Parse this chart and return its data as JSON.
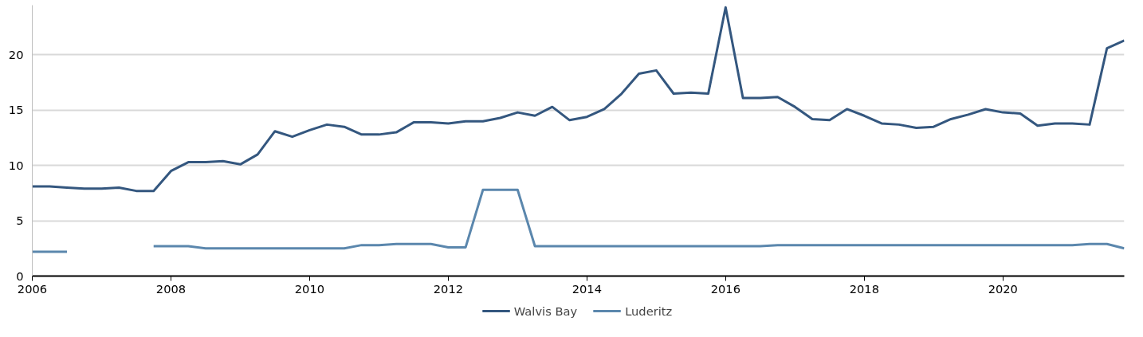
{
  "chart_data": {
    "type": "line",
    "x": [
      2006,
      2006.25,
      2006.5,
      2006.75,
      2007,
      2007.25,
      2007.5,
      2007.75,
      2008,
      2008.25,
      2008.5,
      2008.75,
      2009,
      2009.25,
      2009.5,
      2009.75,
      2010,
      2010.25,
      2010.5,
      2010.75,
      2011,
      2011.25,
      2011.5,
      2011.75,
      2012,
      2012.25,
      2012.5,
      2012.75,
      2013,
      2013.25,
      2013.5,
      2013.75,
      2014,
      2014.25,
      2014.5,
      2014.75,
      2015,
      2015.25,
      2015.5,
      2015.75,
      2016,
      2016.25,
      2016.5,
      2016.75,
      2017,
      2017.25,
      2017.5,
      2017.75,
      2018,
      2018.25,
      2018.5,
      2018.75,
      2019,
      2019.25,
      2019.5,
      2019.75,
      2020,
      2020.25,
      2020.5,
      2020.75,
      2021,
      2021.25,
      2021.5,
      2021.75
    ],
    "series": [
      {
        "name": "Walvis Bay",
        "color": "#34577f",
        "values": [
          8.1,
          8.1,
          8.0,
          7.9,
          7.9,
          8.0,
          7.7,
          7.7,
          9.5,
          10.3,
          10.3,
          10.4,
          10.1,
          11.0,
          13.1,
          12.6,
          13.2,
          13.7,
          13.5,
          12.8,
          12.8,
          13.0,
          13.9,
          13.9,
          13.8,
          14.0,
          14.0,
          14.3,
          14.8,
          14.5,
          15.3,
          14.1,
          14.4,
          15.1,
          16.5,
          18.3,
          18.6,
          16.5,
          16.6,
          16.5,
          24.3,
          16.1,
          16.1,
          16.2,
          15.3,
          14.2,
          14.1,
          15.1,
          14.5,
          13.8,
          13.7,
          13.4,
          13.5,
          14.2,
          14.6,
          15.1,
          14.8,
          14.7,
          13.6,
          13.8,
          13.8,
          13.7,
          20.6,
          21.3
        ]
      },
      {
        "name": "Luderitz",
        "color": "#5b87ad",
        "values": [
          2.2,
          2.2,
          2.2,
          null,
          null,
          null,
          null,
          2.7,
          2.7,
          2.7,
          2.5,
          2.5,
          2.5,
          2.5,
          2.5,
          2.5,
          2.5,
          2.5,
          2.5,
          2.8,
          2.8,
          2.9,
          2.9,
          2.9,
          2.6,
          2.6,
          7.8,
          7.8,
          7.8,
          2.7,
          2.7,
          2.7,
          2.7,
          2.7,
          2.7,
          2.7,
          2.7,
          2.7,
          2.7,
          2.7,
          2.7,
          2.7,
          2.7,
          2.8,
          2.8,
          2.8,
          2.8,
          2.8,
          2.8,
          2.8,
          2.8,
          2.8,
          2.8,
          2.8,
          2.8,
          2.8,
          2.8,
          2.8,
          2.8,
          2.8,
          2.8,
          2.9,
          2.9,
          2.5
        ]
      }
    ],
    "xlim": [
      2006,
      2021.75
    ],
    "xticks": [
      2006,
      2008,
      2010,
      2012,
      2014,
      2016,
      2018,
      2020
    ],
    "ylim": [
      0,
      24.5
    ],
    "yticks": [
      0,
      5,
      10,
      15,
      20
    ],
    "grid": "y",
    "legend": "bottom",
    "line_style": "solid"
  }
}
